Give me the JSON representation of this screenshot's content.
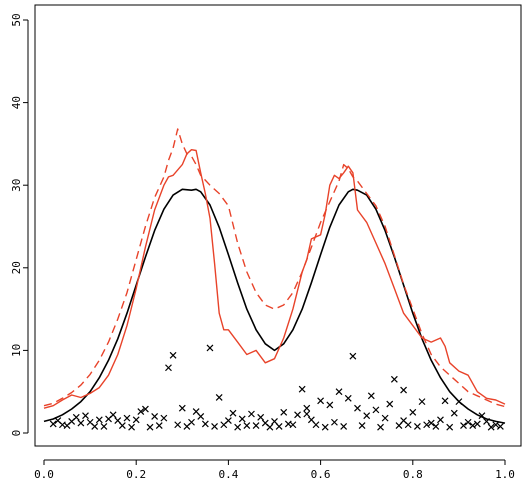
{
  "chart_data": {
    "type": "line",
    "title": "",
    "xlabel": "",
    "ylabel": "",
    "xlim": [
      0,
      1
    ],
    "ylim": [
      0,
      50
    ],
    "grid": false,
    "legend": "none",
    "x_ticks": [
      0.0,
      0.2,
      0.4,
      0.6,
      0.8,
      1.0
    ],
    "x_tick_labels": [
      "0.0",
      "0.2",
      "0.4",
      "0.6",
      "0.8",
      "1.0"
    ],
    "y_ticks": [
      0,
      10,
      20,
      30,
      40,
      50
    ],
    "y_tick_labels": [
      "0",
      "10",
      "20",
      "30",
      "40",
      "50"
    ],
    "series": [
      {
        "style": "solid",
        "color": "#000000",
        "x": [
          0.0,
          0.02,
          0.04,
          0.06,
          0.08,
          0.1,
          0.12,
          0.14,
          0.16,
          0.18,
          0.2,
          0.22,
          0.24,
          0.26,
          0.28,
          0.3,
          0.32,
          0.33,
          0.34,
          0.36,
          0.38,
          0.4,
          0.42,
          0.44,
          0.46,
          0.48,
          0.5,
          0.52,
          0.54,
          0.56,
          0.58,
          0.6,
          0.62,
          0.64,
          0.66,
          0.67,
          0.68,
          0.7,
          0.72,
          0.74,
          0.76,
          0.78,
          0.8,
          0.82,
          0.84,
          0.86,
          0.88,
          0.9,
          0.92,
          0.94,
          0.96,
          0.98,
          1.0
        ],
        "y": [
          1.4,
          1.7,
          2.2,
          2.9,
          3.8,
          5.0,
          6.7,
          8.8,
          11.4,
          14.5,
          17.9,
          21.3,
          24.5,
          27.1,
          28.8,
          29.5,
          29.4,
          29.5,
          29.2,
          27.6,
          24.9,
          21.6,
          18.2,
          15.0,
          12.5,
          10.8,
          10.0,
          10.8,
          12.5,
          15.0,
          18.2,
          21.6,
          24.9,
          27.6,
          29.2,
          29.5,
          29.4,
          28.8,
          27.1,
          24.5,
          21.3,
          17.9,
          14.5,
          11.4,
          8.8,
          6.7,
          5.0,
          3.8,
          2.9,
          2.2,
          1.7,
          1.4,
          1.2
        ]
      },
      {
        "style": "solid",
        "color": "#e8432a",
        "x": [
          0.0,
          0.02,
          0.04,
          0.06,
          0.08,
          0.1,
          0.12,
          0.14,
          0.16,
          0.18,
          0.2,
          0.22,
          0.24,
          0.26,
          0.27,
          0.28,
          0.3,
          0.31,
          0.32,
          0.33,
          0.34,
          0.35,
          0.36,
          0.37,
          0.38,
          0.39,
          0.4,
          0.42,
          0.44,
          0.46,
          0.48,
          0.5,
          0.52,
          0.54,
          0.56,
          0.57,
          0.58,
          0.6,
          0.61,
          0.62,
          0.63,
          0.64,
          0.65,
          0.66,
          0.67,
          0.68,
          0.7,
          0.72,
          0.74,
          0.76,
          0.78,
          0.8,
          0.82,
          0.84,
          0.86,
          0.87,
          0.88,
          0.9,
          0.92,
          0.94,
          0.96,
          0.98,
          1.0
        ],
        "y": [
          3.0,
          3.3,
          4.0,
          4.6,
          4.3,
          4.8,
          5.5,
          7.0,
          9.5,
          13.0,
          17.5,
          22.5,
          27.0,
          30.0,
          31.0,
          31.2,
          32.5,
          33.8,
          34.3,
          34.2,
          31.5,
          29.0,
          26.0,
          20.5,
          14.5,
          12.5,
          12.5,
          11.0,
          9.5,
          10.0,
          8.5,
          9.0,
          11.5,
          15.0,
          19.5,
          21.0,
          23.5,
          24.0,
          26.5,
          30.0,
          31.2,
          30.8,
          31.5,
          32.3,
          31.5,
          27.0,
          25.5,
          23.0,
          20.5,
          17.5,
          14.5,
          13.0,
          11.5,
          11.0,
          11.5,
          10.5,
          8.5,
          7.5,
          7.0,
          5.0,
          4.2,
          4.0,
          3.5
        ]
      },
      {
        "style": "dashed",
        "color": "#e8432a",
        "x": [
          0.0,
          0.02,
          0.04,
          0.06,
          0.08,
          0.1,
          0.12,
          0.14,
          0.16,
          0.18,
          0.2,
          0.22,
          0.24,
          0.26,
          0.27,
          0.28,
          0.29,
          0.3,
          0.31,
          0.32,
          0.33,
          0.34,
          0.36,
          0.38,
          0.4,
          0.42,
          0.44,
          0.46,
          0.48,
          0.5,
          0.52,
          0.54,
          0.56,
          0.58,
          0.6,
          0.62,
          0.64,
          0.65,
          0.66,
          0.67,
          0.68,
          0.7,
          0.72,
          0.74,
          0.76,
          0.78,
          0.8,
          0.82,
          0.84,
          0.86,
          0.88,
          0.9,
          0.92,
          0.94,
          0.96,
          0.98,
          1.0
        ],
        "y": [
          3.3,
          3.6,
          4.2,
          4.9,
          5.8,
          7.1,
          8.8,
          11.0,
          13.8,
          17.0,
          21.0,
          25.0,
          28.5,
          31.0,
          33.0,
          34.5,
          36.8,
          35.0,
          33.8,
          33.5,
          32.5,
          31.2,
          30.0,
          29.0,
          27.5,
          23.0,
          19.5,
          17.0,
          15.5,
          15.0,
          15.5,
          17.0,
          19.5,
          22.5,
          25.5,
          28.0,
          30.5,
          32.5,
          32.0,
          31.0,
          30.5,
          29.0,
          27.5,
          25.0,
          21.5,
          18.0,
          15.0,
          12.0,
          9.5,
          8.0,
          7.0,
          6.0,
          5.0,
          4.5,
          4.0,
          3.5,
          3.2
        ]
      }
    ],
    "points": {
      "marker": "x",
      "color": "#000000",
      "x": [
        0.27,
        0.28,
        0.36,
        0.56,
        0.64,
        0.67,
        0.76,
        0.78,
        0.71,
        0.6,
        0.66,
        0.82,
        0.87,
        0.57,
        0.62,
        0.75,
        0.9,
        0.38,
        0.3,
        0.45,
        0.52,
        0.68,
        0.72,
        0.22,
        0.33,
        0.41,
        0.8,
        0.47,
        0.55,
        0.7,
        0.02,
        0.04,
        0.06,
        0.08,
        0.1,
        0.12,
        0.14,
        0.16,
        0.18,
        0.2,
        0.24,
        0.26,
        0.32,
        0.35,
        0.4,
        0.43,
        0.48,
        0.5,
        0.53,
        0.58,
        0.63,
        0.74,
        0.78,
        0.84,
        0.86,
        0.92,
        0.94,
        0.96,
        0.98,
        0.13,
        0.17,
        0.23,
        0.29,
        0.37,
        0.44,
        0.49,
        0.59,
        0.65,
        0.69,
        0.73,
        0.79,
        0.85,
        0.91,
        0.97,
        0.05,
        0.11,
        0.19,
        0.25,
        0.31,
        0.39,
        0.42,
        0.46,
        0.51,
        0.54,
        0.61,
        0.77,
        0.81,
        0.83,
        0.88,
        0.93,
        0.99,
        0.15,
        0.21,
        0.34,
        0.57,
        0.89,
        0.95,
        0.07,
        0.09,
        0.03
      ],
      "y": [
        7.9,
        9.4,
        10.3,
        5.3,
        5.0,
        9.3,
        6.5,
        5.2,
        4.5,
        3.9,
        4.2,
        3.8,
        3.9,
        3.0,
        3.4,
        3.5,
        3.8,
        4.3,
        3.0,
        2.3,
        2.5,
        3.0,
        2.8,
        2.9,
        2.6,
        2.4,
        2.5,
        1.9,
        2.2,
        2.1,
        1.1,
        1.0,
        1.4,
        1.2,
        1.3,
        1.6,
        1.7,
        1.5,
        1.8,
        1.6,
        2.0,
        1.8,
        1.3,
        1.1,
        1.5,
        1.7,
        1.2,
        1.4,
        1.1,
        1.6,
        1.3,
        1.8,
        1.5,
        1.2,
        1.6,
        1.3,
        1.1,
        1.4,
        1.0,
        0.8,
        0.9,
        0.7,
        1.0,
        0.8,
        0.9,
        0.7,
        1.0,
        0.8,
        0.9,
        0.7,
        1.0,
        0.8,
        0.9,
        0.7,
        0.9,
        0.8,
        0.7,
        0.9,
        0.8,
        1.0,
        0.7,
        0.9,
        0.8,
        1.0,
        0.7,
        0.9,
        0.8,
        1.0,
        0.7,
        0.9,
        0.8,
        2.2,
        2.6,
        2.0,
        2.3,
        2.4,
        2.1,
        1.9,
        2.1,
        1.5
      ]
    }
  }
}
